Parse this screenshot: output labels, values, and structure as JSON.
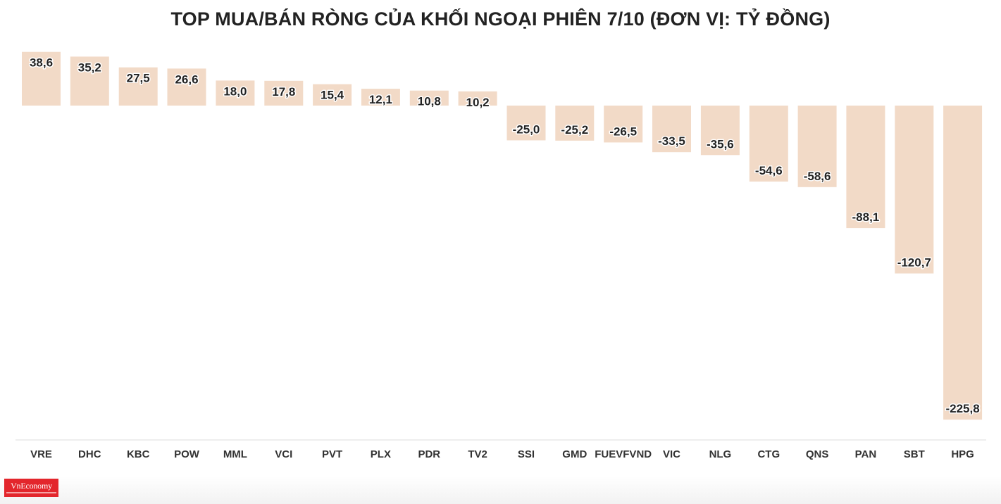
{
  "chart_data": {
    "type": "bar",
    "title": "TOP MUA/BÁN RÒNG CỦA KHỐI NGOẠI PHIÊN 7/10 (ĐƠN VỊ: TỶ ĐỒNG)",
    "categories": [
      "VRE",
      "DHC",
      "KBC",
      "POW",
      "MML",
      "VCI",
      "PVT",
      "PLX",
      "PDR",
      "TV2",
      "SSI",
      "GMD",
      "FUEVFVND",
      "VIC",
      "NLG",
      "CTG",
      "QNS",
      "PAN",
      "SBT",
      "HPG"
    ],
    "values": [
      38.6,
      35.2,
      27.5,
      26.6,
      18.0,
      17.8,
      15.4,
      12.1,
      10.8,
      10.2,
      -25.0,
      -25.2,
      -26.5,
      -33.5,
      -35.6,
      -54.6,
      -58.6,
      -88.1,
      -120.7,
      -225.8
    ],
    "value_labels": [
      "38,6",
      "35,2",
      "27,5",
      "26,6",
      "18,0",
      "17,8",
      "15,4",
      "12,1",
      "10,8",
      "10,2",
      "-25,0",
      "-25,2",
      "-26,5",
      "-33,5",
      "-35,6",
      "-54,6",
      "-58,6",
      "-88,1",
      "-120,7",
      "-225,8"
    ],
    "bar_color": "#f2dac7",
    "label_color": "#222222",
    "axis_line_color": "#dddddd",
    "xlabel": "",
    "ylabel": "",
    "grid": false,
    "legend": "none"
  },
  "brand": {
    "logo_text": "VnEconomy",
    "logo_color": "#e3262c"
  }
}
